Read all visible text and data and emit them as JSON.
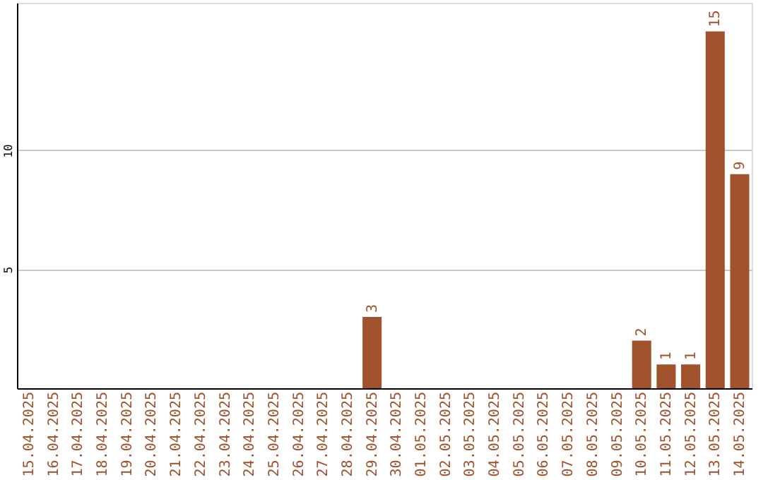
{
  "chart_data": {
    "type": "bar",
    "categories": [
      "15.04.2025",
      "16.04.2025",
      "17.04.2025",
      "18.04.2025",
      "19.04.2025",
      "20.04.2025",
      "21.04.2025",
      "22.04.2025",
      "23.04.2025",
      "24.04.2025",
      "25.04.2025",
      "26.04.2025",
      "27.04.2025",
      "28.04.2025",
      "29.04.2025",
      "30.04.2025",
      "01.05.2025",
      "02.05.2025",
      "03.05.2025",
      "04.05.2025",
      "05.05.2025",
      "06.05.2025",
      "07.05.2025",
      "08.05.2025",
      "09.05.2025",
      "10.05.2025",
      "11.05.2025",
      "12.05.2025",
      "13.05.2025",
      "14.05.2025"
    ],
    "values": [
      0,
      0,
      0,
      0,
      0,
      0,
      0,
      0,
      0,
      0,
      0,
      0,
      0,
      0,
      3,
      0,
      0,
      0,
      0,
      0,
      0,
      0,
      0,
      0,
      0,
      2,
      1,
      1,
      15,
      9
    ],
    "value_labels": [
      null,
      null,
      null,
      null,
      null,
      null,
      null,
      null,
      null,
      null,
      null,
      null,
      null,
      null,
      "3",
      null,
      null,
      null,
      null,
      null,
      null,
      null,
      null,
      null,
      null,
      "2",
      "1",
      "1",
      "15",
      "9"
    ],
    "color": "#a0522d",
    "ylim": [
      0,
      16.2
    ],
    "yticks": [
      5,
      10
    ],
    "grid": "y"
  }
}
